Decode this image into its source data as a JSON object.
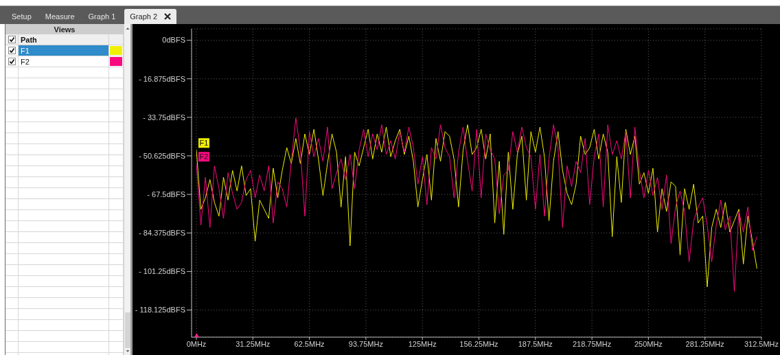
{
  "chart_data": {
    "type": "line",
    "x": [
      0,
      2.5,
      5,
      7.5,
      10,
      12.5,
      15,
      17.5,
      20,
      22.5,
      25,
      27.5,
      30,
      32.5,
      35,
      37.5,
      40,
      42.5,
      45,
      47.5,
      50,
      52.5,
      55,
      57.5,
      60,
      62.5,
      65,
      67.5,
      70,
      72.5,
      75,
      77.5,
      80,
      82.5,
      85,
      87.5,
      90,
      92.5,
      95,
      97.5,
      100,
      102.5,
      105,
      107.5,
      110,
      112.5,
      115,
      117.5,
      120,
      122.5,
      125,
      127.5,
      130,
      132.5,
      135,
      137.5,
      140,
      142.5,
      145,
      147.5,
      150,
      152.5,
      155,
      157.5,
      160,
      162.5,
      165,
      167.5,
      170,
      172.5,
      175,
      177.5,
      180,
      182.5,
      185,
      187.5,
      190,
      192.5,
      195,
      197.5,
      200,
      202.5,
      205,
      207.5,
      210,
      212.5,
      215,
      217.5,
      220,
      222.5,
      225,
      227.5,
      230,
      232.5,
      235,
      237.5,
      240,
      242.5,
      245,
      247.5,
      250,
      252.5,
      255,
      257.5,
      260,
      262.5,
      265,
      267.5,
      270,
      272.5,
      275,
      277.5,
      280,
      282.5,
      285,
      287.5,
      290,
      292.5,
      295,
      297.5,
      300,
      302.5,
      305,
      307.5,
      310
    ],
    "series": [
      {
        "name": "F1",
        "color": "#f0f000",
        "values": [
          -48,
          -74,
          -69,
          -61,
          -71,
          -77,
          -60,
          -70,
          -57,
          -66,
          -55,
          -68,
          -65,
          -88,
          -70,
          -74,
          -78,
          -56,
          -69,
          -57,
          -47,
          -54,
          -43,
          -54,
          -41,
          -50,
          -39,
          -52,
          -68,
          -54,
          -41,
          -49,
          -73,
          -51,
          -90,
          -49,
          -55,
          -47,
          -39,
          -52,
          -41,
          -49,
          -38,
          -51,
          -44,
          -39,
          -50,
          -42,
          -53,
          -73,
          -61,
          -50,
          -70,
          -43,
          -53,
          -40,
          -42,
          -52,
          -73,
          -48,
          -37,
          -50,
          -47,
          -39,
          -52,
          -41,
          -80,
          -53,
          -85,
          -49,
          -74,
          -50,
          -42,
          -70,
          -40,
          -49,
          -38,
          -51,
          -79,
          -53,
          -40,
          -57,
          -67,
          -72,
          -63,
          -42,
          -50,
          -47,
          -39,
          -52,
          -41,
          -49,
          -86,
          -51,
          -71,
          -39,
          -50,
          -42,
          -63,
          -58,
          -67,
          -56,
          -84,
          -65,
          -75,
          -62,
          -64,
          -94,
          -65,
          -74,
          -63,
          -80,
          -77,
          -108,
          -82,
          -74,
          -82,
          -71,
          -84,
          -79,
          -74,
          -98,
          -77,
          -88,
          -100
        ]
      },
      {
        "name": "F2",
        "color": "#fa0a80",
        "values": [
          -54,
          -81,
          -60,
          -82,
          -55,
          -65,
          -78,
          -58,
          -67,
          -74,
          -71,
          -61,
          -57,
          -69,
          -59,
          -66,
          -55,
          -80,
          -62,
          -65,
          -73,
          -53,
          -34,
          -48,
          -77,
          -40,
          -51,
          -43,
          -53,
          -38,
          -65,
          -58,
          -52,
          -61,
          -50,
          -65,
          -48,
          -39,
          -51,
          -41,
          -48,
          -37,
          -50,
          -44,
          -52,
          -40,
          -49,
          -38,
          -47,
          -63,
          -51,
          -72,
          -47,
          -52,
          -37,
          -47,
          -51,
          -69,
          -49,
          -38,
          -53,
          -66,
          -39,
          -69,
          -41,
          -48,
          -52,
          -76,
          -59,
          -57,
          -40,
          -49,
          -38,
          -47,
          -51,
          -74,
          -50,
          -77,
          -52,
          -37,
          -47,
          -82,
          -55,
          -64,
          -53,
          -58,
          -43,
          -72,
          -51,
          -41,
          -73,
          -37,
          -50,
          -44,
          -52,
          -40,
          -69,
          -38,
          -57,
          -69,
          -57,
          -68,
          -60,
          -74,
          -59,
          -89,
          -73,
          -66,
          -75,
          -97,
          -79,
          -73,
          -69,
          -81,
          -97,
          -81,
          -70,
          -83,
          -77,
          -110,
          -75,
          -84,
          -73,
          -92,
          -86
        ]
      }
    ],
    "xlim": [
      0,
      312.5
    ],
    "xticks": [
      {
        "value": 0,
        "label": "0MHz"
      },
      {
        "value": 31.25,
        "label": "31.25MHz"
      },
      {
        "value": 62.5,
        "label": "62.5MHz"
      },
      {
        "value": 93.75,
        "label": "93.75MHz"
      },
      {
        "value": 125,
        "label": "125MHz"
      },
      {
        "value": 156.25,
        "label": "156.25MHz"
      },
      {
        "value": 187.5,
        "label": "187.5MHz"
      },
      {
        "value": 218.75,
        "label": "218.75MHz"
      },
      {
        "value": 250,
        "label": "250MHz"
      },
      {
        "value": 281.25,
        "label": "281.25MHz"
      },
      {
        "value": 312.5,
        "label": "312.5MHz"
      }
    ],
    "ylim": [
      -130,
      5
    ],
    "yticks": [
      {
        "value": 0,
        "label": "0dBFS"
      },
      {
        "value": -16.875,
        "label": "- 16.875dBFS"
      },
      {
        "value": -33.75,
        "label": "- 33.75dBFS"
      },
      {
        "value": -50.625,
        "label": "- 50.625dBFS"
      },
      {
        "value": -67.5,
        "label": "- 67.5dBFS"
      },
      {
        "value": -84.375,
        "label": "- 84.375dBFS"
      },
      {
        "value": -101.25,
        "label": "- 101.25dBFS"
      },
      {
        "value": -118.125,
        "label": "- 118.125dBFS"
      }
    ],
    "grid": true,
    "legend": "left",
    "legend_title": "Views",
    "annotations": [
      "Setup",
      "Measure",
      "Graph 1",
      "Graph 2",
      "Path"
    ]
  }
}
